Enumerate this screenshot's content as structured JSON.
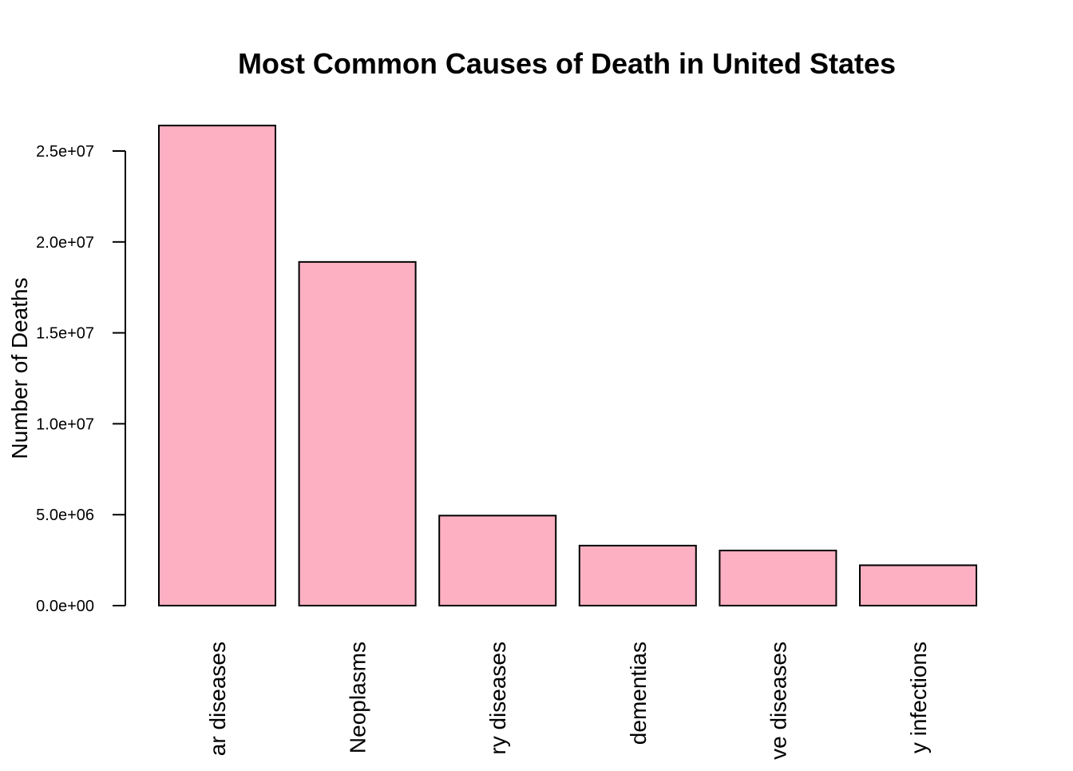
{
  "chart_data": {
    "type": "bar",
    "title": "Most Common Causes of Death in United States",
    "xlabel": "",
    "ylabel": "Number of Deaths",
    "categories": [
      "ar diseases",
      "Neoplasms",
      "ry diseases",
      "dementias",
      "ve diseases",
      "y infections"
    ],
    "values": [
      26400000,
      18900000,
      4950000,
      3300000,
      3030000,
      2220000
    ],
    "ylim": [
      0,
      25000000
    ],
    "yticks": [
      0,
      5000000,
      10000000,
      15000000,
      20000000,
      25000000
    ],
    "ytick_labels": [
      "0.0e+00",
      "5.0e+06",
      "1.0e+07",
      "1.5e+07",
      "2.0e+07",
      "2.5e+07"
    ],
    "bar_fill": "#fcb0c1",
    "bar_stroke": "#000000",
    "grid": false,
    "legend": "none"
  }
}
